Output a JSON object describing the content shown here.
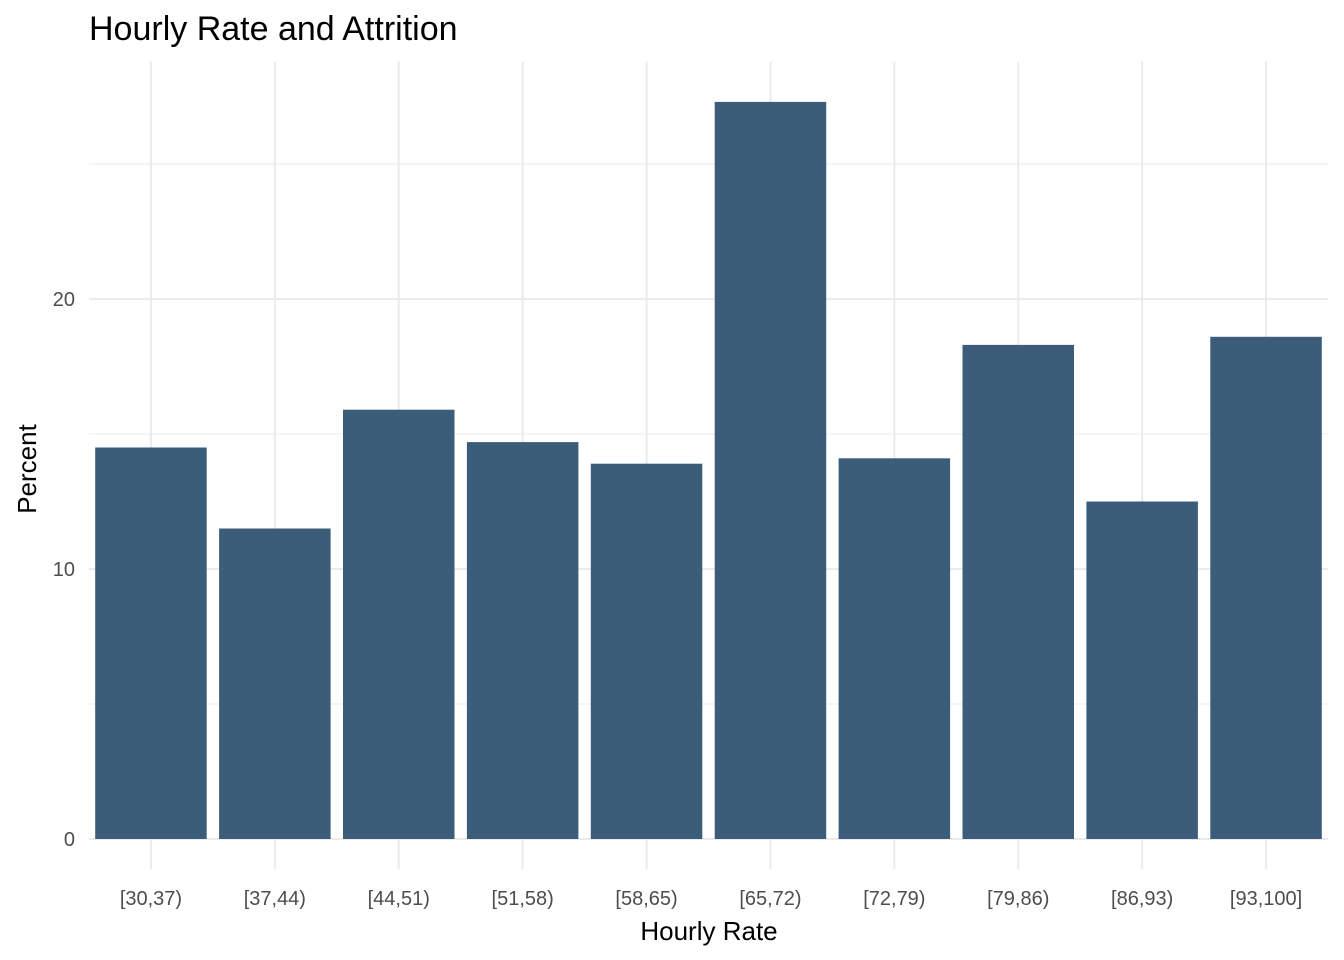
{
  "chart_data": {
    "type": "bar",
    "title": "Hourly Rate and Attrition",
    "xlabel": "Hourly Rate",
    "ylabel": "Percent",
    "categories": [
      "[30,37)",
      "[37,44)",
      "[44,51)",
      "[51,58)",
      "[58,65)",
      "[65,72)",
      "[72,79)",
      "[79,86)",
      "[86,93)",
      "[93,100]"
    ],
    "values": [
      14.5,
      11.5,
      15.9,
      14.7,
      13.9,
      27.3,
      14.1,
      18.3,
      12.5,
      18.6
    ],
    "ylim": [
      0,
      30
    ],
    "yticks": [
      0,
      10,
      20
    ],
    "grid": true,
    "bar_color": "#3c5d7a"
  }
}
